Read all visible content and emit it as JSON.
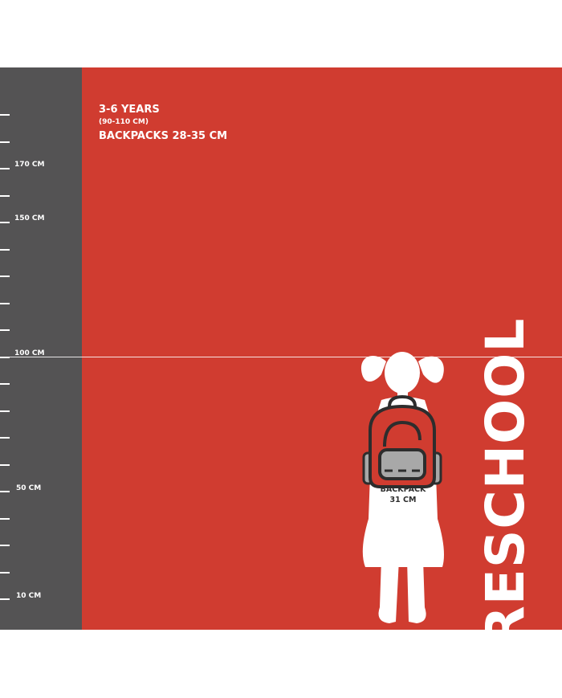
{
  "ruler": {
    "labels": {
      "l170": "170 CM",
      "l150": "150 CM",
      "l100": "100 CM",
      "l50": "50 CM",
      "l10": "10 CM"
    }
  },
  "info": {
    "age": "3-6 YEARS",
    "height_range": "(90-110 CM)",
    "backpacks": "BACKPACKS 28-35 CM"
  },
  "figure": {
    "backpack_label": "BACKPACK",
    "backpack_size": "31 CM"
  },
  "title": "PRESCHOOL",
  "colors": {
    "background": "#d03c30",
    "ruler": "#545354",
    "text": "#ffffff",
    "backpack_gray": "#a8a8a8"
  }
}
